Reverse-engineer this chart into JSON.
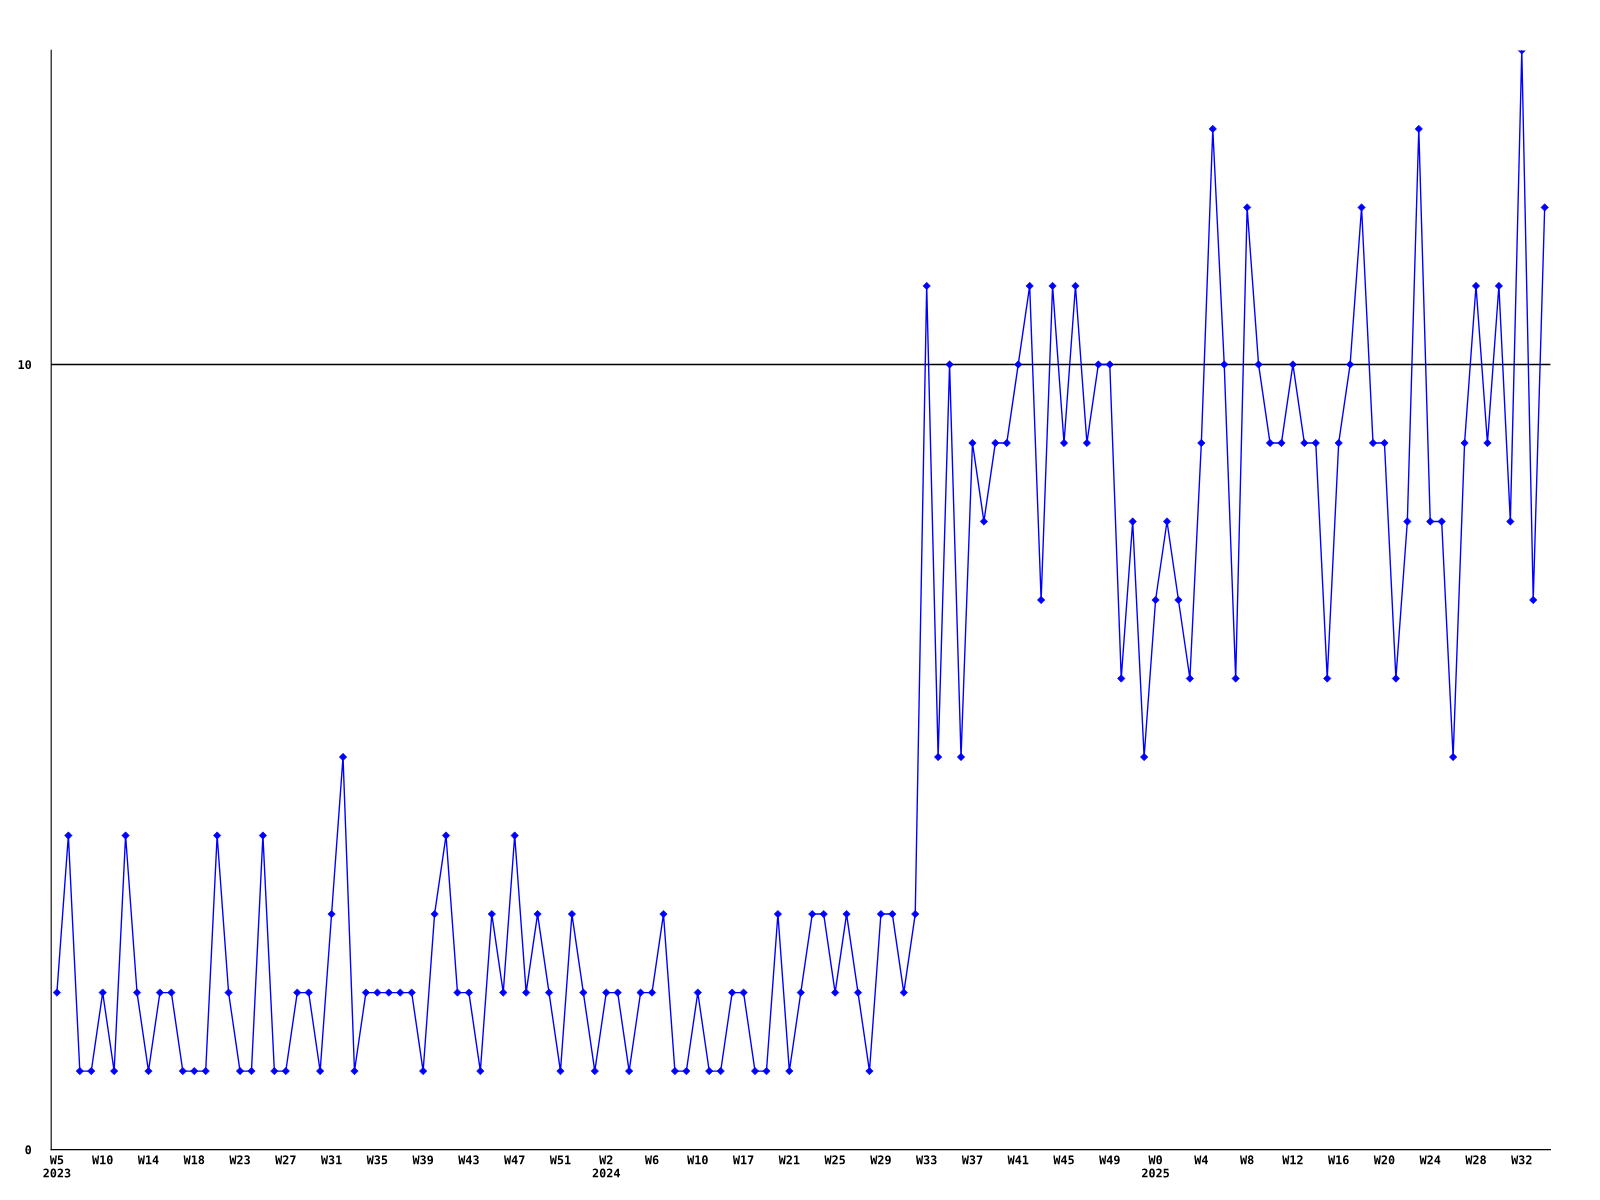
{
  "chart_data": {
    "type": "line",
    "categories": [
      "W5\n2023",
      null,
      null,
      null,
      "W10",
      null,
      null,
      null,
      "W14",
      null,
      null,
      null,
      "W18",
      null,
      null,
      null,
      "W23",
      null,
      null,
      null,
      "W27",
      null,
      null,
      null,
      "W31",
      null,
      null,
      null,
      "W35",
      null,
      null,
      null,
      "W39",
      null,
      null,
      null,
      "W43",
      null,
      null,
      null,
      "W47",
      null,
      null,
      null,
      "W51",
      null,
      null,
      null,
      "W2\n2024",
      null,
      null,
      null,
      "W6",
      null,
      null,
      null,
      "W10",
      null,
      null,
      null,
      "W17",
      null,
      null,
      null,
      "W21",
      null,
      null,
      null,
      "W25",
      null,
      null,
      null,
      "W29",
      null,
      null,
      null,
      "W33",
      null,
      null,
      null,
      "W37",
      null,
      null,
      null,
      "W41",
      null,
      null,
      null,
      "W45",
      null,
      null,
      null,
      "W49",
      null,
      null,
      null,
      "W0\n2025",
      null,
      null,
      null,
      "W4",
      null,
      null,
      null,
      "W8",
      null,
      null,
      null,
      "W12",
      null,
      null,
      null,
      "W16",
      null,
      null,
      null,
      "W20",
      null,
      null,
      null,
      "W24",
      null,
      null,
      null,
      "W28",
      null,
      null,
      null,
      "W32",
      null,
      null
    ],
    "series": [
      {
        "color": "#0000ff",
        "values": [
          2,
          4,
          1,
          1,
          2,
          1,
          4,
          2,
          1,
          2,
          2,
          1,
          1,
          1,
          4,
          2,
          1,
          1,
          4,
          1,
          1,
          2,
          2,
          1,
          3,
          5,
          1,
          2,
          2,
          2,
          2,
          2,
          1,
          3,
          4,
          2,
          2,
          1,
          3,
          2,
          4,
          2,
          3,
          2,
          1,
          3,
          2,
          1,
          2,
          2,
          1,
          2,
          2,
          3,
          1,
          1,
          2,
          1,
          1,
          2,
          2,
          1,
          1,
          3,
          1,
          2,
          3,
          3,
          2,
          3,
          2,
          1,
          3,
          3,
          2,
          3,
          11,
          5,
          10,
          5,
          9,
          8,
          9,
          9,
          10,
          11,
          7,
          11,
          9,
          11,
          9,
          10,
          10,
          6,
          8,
          5,
          7,
          8,
          7,
          6,
          9,
          13,
          10,
          6,
          12,
          10,
          9,
          9,
          10,
          9,
          9,
          6,
          9,
          10,
          12,
          9,
          9,
          6,
          8,
          13,
          8,
          8,
          5,
          9,
          11,
          9,
          11,
          8,
          14,
          7,
          12
        ]
      }
    ],
    "ylim": [
      0,
      14
    ],
    "yticks": [
      0,
      10
    ],
    "grid": "y",
    "marker": "diamond",
    "line_style": "solid",
    "legend": false
  }
}
